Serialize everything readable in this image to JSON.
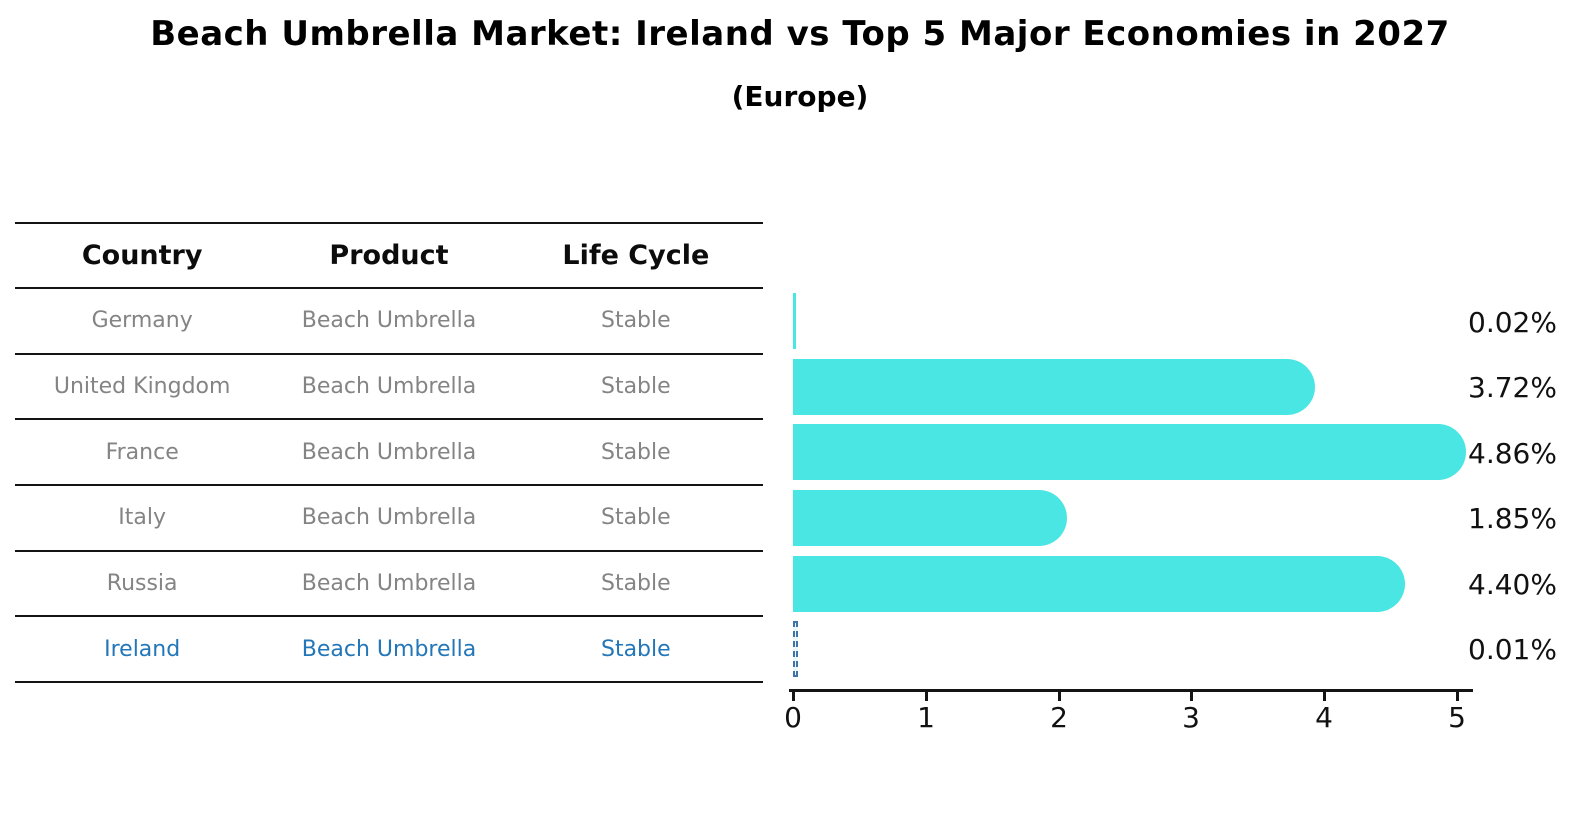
{
  "title": "Beach Umbrella Market: Ireland vs Top 5 Major Economies in 2027",
  "subtitle": "(Europe)",
  "table": {
    "headers": [
      "Country",
      "Product",
      "Life Cycle"
    ],
    "rows": [
      {
        "country": "Germany",
        "product": "Beach Umbrella",
        "life_cycle": "Stable",
        "highlighted": false
      },
      {
        "country": "United Kingdom",
        "product": "Beach Umbrella",
        "life_cycle": "Stable",
        "highlighted": false
      },
      {
        "country": "France",
        "product": "Beach Umbrella",
        "life_cycle": "Stable",
        "highlighted": false
      },
      {
        "country": "Italy",
        "product": "Beach Umbrella",
        "life_cycle": "Stable",
        "highlighted": false
      },
      {
        "country": "Russia",
        "product": "Beach Umbrella",
        "life_cycle": "Stable",
        "highlighted": false
      },
      {
        "country": "Ireland",
        "product": "Beach Umbrella",
        "life_cycle": "Stable",
        "highlighted": true
      }
    ]
  },
  "chart_data": {
    "type": "bar",
    "orientation": "horizontal",
    "title": "Beach Umbrella Market: Ireland vs Top 5 Major Economies in 2027",
    "subtitle": "(Europe)",
    "categories": [
      "Germany",
      "United Kingdom",
      "France",
      "Italy",
      "Russia",
      "Ireland"
    ],
    "values": [
      0.02,
      3.72,
      4.86,
      1.85,
      4.4,
      0.01
    ],
    "value_labels": [
      "0.02%",
      "3.72%",
      "4.86%",
      "1.85%",
      "4.40%",
      "0.01%"
    ],
    "xlabel": "",
    "ylabel": "",
    "xlim": [
      0,
      5
    ],
    "x_ticks": [
      0,
      1,
      2,
      3,
      4,
      5
    ],
    "grid": false,
    "legend": false,
    "bar_color": "#4ae6e3",
    "highlight_index": 5,
    "highlight_country": "Ireland",
    "highlight_color": "#2377b8",
    "highlight_bar_style": "dashed-outline"
  }
}
